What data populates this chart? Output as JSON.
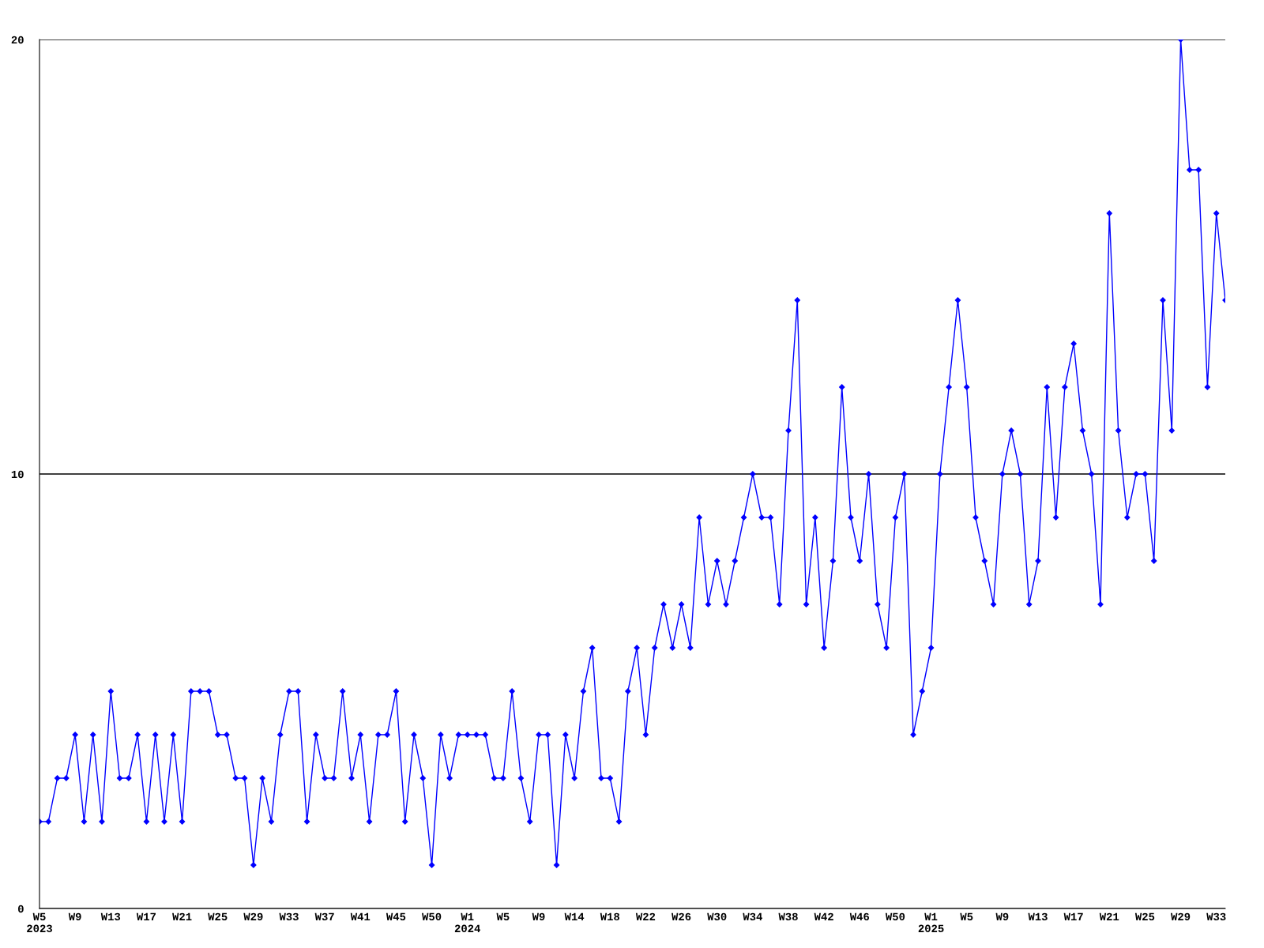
{
  "chart_data": {
    "type": "line",
    "categories": [
      "W5\n2023",
      null,
      null,
      null,
      "W9",
      null,
      null,
      null,
      "W13",
      null,
      null,
      null,
      "W17",
      null,
      null,
      null,
      "W21",
      null,
      null,
      null,
      "W25",
      null,
      null,
      null,
      "W29",
      null,
      null,
      null,
      "W33",
      null,
      null,
      null,
      "W37",
      null,
      null,
      null,
      "W41",
      null,
      null,
      null,
      "W45",
      null,
      null,
      null,
      "W50",
      null,
      null,
      null,
      "W1\n2024",
      null,
      null,
      null,
      "W5",
      null,
      null,
      null,
      "W9",
      null,
      null,
      null,
      "W14",
      null,
      null,
      null,
      "W18",
      null,
      null,
      null,
      "W22",
      null,
      null,
      null,
      "W26",
      null,
      null,
      null,
      "W30",
      null,
      null,
      null,
      "W34",
      null,
      null,
      null,
      "W38",
      null,
      null,
      null,
      "W42",
      null,
      null,
      null,
      "W46",
      null,
      null,
      null,
      "W50",
      null,
      null,
      null,
      "W1\n2025",
      null,
      null,
      null,
      "W5",
      null,
      null,
      null,
      "W9",
      null,
      null,
      null,
      "W13",
      null,
      null,
      null,
      "W17",
      null,
      null,
      null,
      "W21",
      null,
      null,
      null,
      "W25",
      null,
      null,
      null,
      "W29",
      null,
      null,
      null,
      "W33",
      null
    ],
    "series": [
      {
        "color": "#0000ff",
        "values": [
          2,
          2,
          3,
          3,
          4,
          2,
          4,
          2,
          5,
          3,
          3,
          4,
          2,
          4,
          2,
          4,
          2,
          5,
          5,
          5,
          4,
          4,
          3,
          3,
          1,
          3,
          2,
          4,
          5,
          5,
          2,
          4,
          3,
          3,
          5,
          3,
          4,
          2,
          4,
          4,
          5,
          2,
          4,
          3,
          1,
          4,
          3,
          4,
          4,
          4,
          4,
          3,
          3,
          5,
          3,
          2,
          4,
          4,
          1,
          4,
          3,
          5,
          6,
          3,
          3,
          2,
          5,
          6,
          4,
          6,
          7,
          6,
          7,
          6,
          9,
          7,
          8,
          7,
          8,
          9,
          10,
          9,
          9,
          7,
          11,
          14,
          7,
          9,
          6,
          8,
          12,
          9,
          8,
          10,
          7,
          6,
          9,
          10,
          4,
          5,
          6,
          10,
          12,
          14,
          12,
          9,
          8,
          7,
          10,
          11,
          10,
          7,
          8,
          12,
          9,
          12,
          13,
          11,
          10,
          7,
          16,
          11,
          9,
          10,
          10,
          8,
          14,
          11,
          20,
          17,
          17,
          12,
          16,
          14
        ]
      }
    ],
    "ylim": [
      0,
      20
    ],
    "yticks": [
      0,
      10,
      20
    ],
    "grid": "y",
    "marker": "diamond",
    "line_style": "solid",
    "legend": false
  }
}
